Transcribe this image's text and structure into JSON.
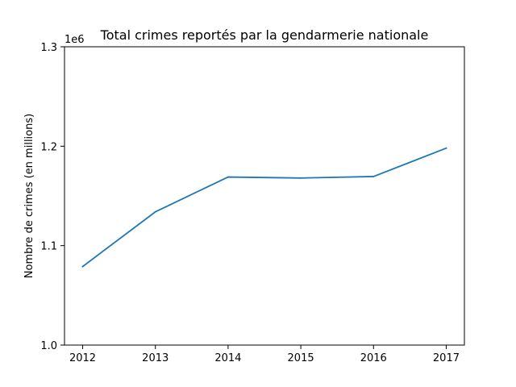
{
  "chart_data": {
    "type": "line",
    "title": "Total crimes reportés par la gendarmerie nationale",
    "xlabel": "",
    "ylabel": "Nombre de crimes (en millions)",
    "y_offset_label": "1e6",
    "x": [
      2012,
      2013,
      2014,
      2015,
      2016,
      2017
    ],
    "x_tick_labels": [
      "2012",
      "2013",
      "2014",
      "2015",
      "2016",
      "2017"
    ],
    "xlim": [
      2011.75,
      2017.25
    ],
    "ylim": [
      1000000,
      1300000
    ],
    "y_ticks": [
      1000000,
      1100000,
      1200000,
      1300000
    ],
    "y_tick_labels": [
      "1.0",
      "1.1",
      "1.2",
      "1.3"
    ],
    "grid": false,
    "series": [
      {
        "color": "#1f77b4",
        "values": [
          1079000,
          1134000,
          1169000,
          1168000,
          1169500,
          1198000
        ]
      }
    ]
  }
}
